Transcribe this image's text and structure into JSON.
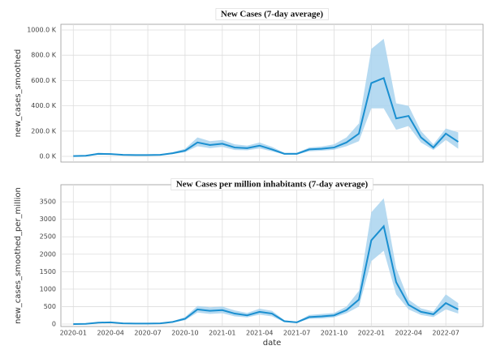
{
  "chart_data": [
    {
      "type": "line",
      "title": "New Cases (7-day average)",
      "y_label": "new_cases_smoothed",
      "x": [
        "2020-01",
        "2020-02",
        "2020-03",
        "2020-04",
        "2020-05",
        "2020-06",
        "2020-07",
        "2020-08",
        "2020-09",
        "2020-10",
        "2020-11",
        "2020-12",
        "2021-01",
        "2021-02",
        "2021-03",
        "2021-04",
        "2021-05",
        "2021-06",
        "2021-07",
        "2021-08",
        "2021-09",
        "2021-10",
        "2021-11",
        "2021-12",
        "2022-01",
        "2022-02",
        "2022-03",
        "2022-04",
        "2022-05",
        "2022-06",
        "2022-07",
        "2022-08"
      ],
      "values": [
        2000,
        5000,
        20000,
        18000,
        12000,
        10000,
        10000,
        12000,
        25000,
        45000,
        110000,
        90000,
        100000,
        70000,
        65000,
        85000,
        55000,
        20000,
        20000,
        55000,
        60000,
        70000,
        110000,
        180000,
        580000,
        620000,
        300000,
        320000,
        150000,
        70000,
        180000,
        115000
      ],
      "upper": [
        3000,
        7000,
        28000,
        24000,
        16000,
        13000,
        13000,
        16000,
        33000,
        60000,
        150000,
        120000,
        130000,
        95000,
        85000,
        110000,
        75000,
        28000,
        28000,
        70000,
        78000,
        95000,
        150000,
        260000,
        850000,
        930000,
        420000,
        400000,
        200000,
        95000,
        220000,
        190000
      ],
      "lower": [
        1000,
        3000,
        14000,
        13000,
        9000,
        7000,
        7000,
        9000,
        18000,
        33000,
        80000,
        65000,
        75000,
        50000,
        48000,
        62000,
        40000,
        14000,
        14000,
        40000,
        45000,
        52000,
        80000,
        120000,
        380000,
        380000,
        210000,
        240000,
        110000,
        50000,
        130000,
        60000
      ],
      "color": "#1a8fd0",
      "band_color": "#a9d3ee",
      "grid": true,
      "xlim": [
        "2019-12",
        "2022-10"
      ],
      "xticks": [
        "2020-01",
        "2020-04",
        "2020-07",
        "2020-10",
        "2021-01",
        "2021-04",
        "2021-07",
        "2021-10",
        "2022-01",
        "2022-04",
        "2022-07"
      ],
      "ylim": [
        -45000,
        1045000
      ],
      "yticks": [
        {
          "value": 0,
          "label": "0.0 K"
        },
        {
          "value": 200000,
          "label": "200.0 K"
        },
        {
          "value": 400000,
          "label": "400.0 K"
        },
        {
          "value": 600000,
          "label": "600.0 K"
        },
        {
          "value": 800000,
          "label": "800.0 K"
        },
        {
          "value": 1000000,
          "label": "1000.0 K"
        }
      ]
    },
    {
      "type": "line",
      "title": "New Cases  per million inhabitants (7-day average)",
      "y_label": "new_cases_smoothed_per_million",
      "x_label": "date",
      "x": [
        "2020-01",
        "2020-02",
        "2020-03",
        "2020-04",
        "2020-05",
        "2020-06",
        "2020-07",
        "2020-08",
        "2020-09",
        "2020-10",
        "2020-11",
        "2020-12",
        "2021-01",
        "2021-02",
        "2021-03",
        "2021-04",
        "2021-05",
        "2021-06",
        "2021-07",
        "2021-08",
        "2021-09",
        "2021-10",
        "2021-11",
        "2021-12",
        "2022-01",
        "2022-02",
        "2022-03",
        "2022-04",
        "2022-05",
        "2022-06",
        "2022-07",
        "2022-08"
      ],
      "values": [
        0,
        5,
        40,
        50,
        20,
        15,
        15,
        20,
        60,
        150,
        420,
        380,
        400,
        300,
        250,
        350,
        300,
        80,
        50,
        200,
        220,
        250,
        400,
        700,
        2400,
        2800,
        1200,
        550,
        350,
        280,
        600,
        420
      ],
      "upper": [
        0,
        8,
        55,
        65,
        28,
        20,
        20,
        28,
        80,
        200,
        520,
        480,
        500,
        390,
        320,
        440,
        380,
        110,
        70,
        260,
        290,
        320,
        500,
        950,
        3200,
        3600,
        1600,
        700,
        450,
        360,
        850,
        600
      ],
      "lower": [
        0,
        3,
        28,
        36,
        14,
        10,
        10,
        14,
        42,
        110,
        330,
        290,
        310,
        220,
        190,
        270,
        220,
        55,
        35,
        150,
        160,
        190,
        310,
        500,
        1800,
        2100,
        850,
        420,
        260,
        200,
        420,
        300
      ],
      "color": "#1a8fd0",
      "band_color": "#a9d3ee",
      "grid": true,
      "xlim": [
        "2019-12",
        "2022-10"
      ],
      "xticks": [
        "2020-01",
        "2020-04",
        "2020-07",
        "2020-10",
        "2021-01",
        "2021-04",
        "2021-07",
        "2021-10",
        "2022-01",
        "2022-04",
        "2022-07"
      ],
      "ylim": [
        -70,
        3990
      ],
      "yticks": [
        0,
        500,
        1000,
        1500,
        2000,
        2500,
        3000,
        3500
      ]
    }
  ]
}
